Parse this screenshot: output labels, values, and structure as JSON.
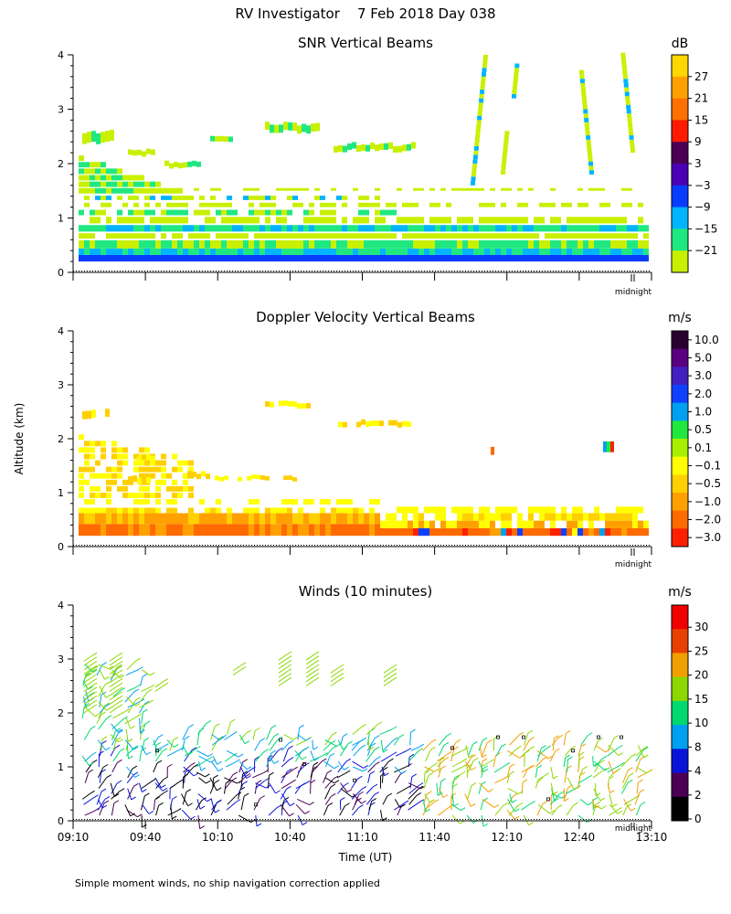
{
  "header": {
    "title": "RV Investigator    7 Feb 2018 Day 038"
  },
  "footer": {
    "note": "Simple moment winds, no ship navigation correction applied"
  },
  "y_axis_label": "Altitude (km)",
  "midnight_label": "midnight",
  "colors": {
    "wind_scale": [
      "#000000",
      "#4b0055",
      "#0a14d8",
      "#00a0f0",
      "#00d870",
      "#8cd800",
      "#f0a000",
      "#e84000",
      "#f00000"
    ]
  },
  "chart_data": [
    {
      "type": "heatmap",
      "title": "SNR Vertical Beams",
      "ylabel": "Altitude (km)",
      "ylim": [
        0,
        4
      ],
      "yticks": [
        "0",
        "1",
        "2",
        "3",
        "4"
      ],
      "colorbar": {
        "unit": "dB",
        "labels": [
          "27",
          "21",
          "15",
          "9",
          "3",
          "−3",
          "−9",
          "−15",
          "−21"
        ],
        "colors": [
          "#ffd700",
          "#ffa000",
          "#ff7000",
          "#ff1a00",
          "#4b0055",
          "#4a00b4",
          "#0a3cff",
          "#00b4ff",
          "#20e880",
          "#c8f000"
        ]
      }
    },
    {
      "type": "heatmap",
      "title": "Doppler Velocity Vertical Beams",
      "ylabel": "Altitude (km)",
      "ylim": [
        0,
        4
      ],
      "yticks": [
        "0",
        "1",
        "2",
        "3",
        "4"
      ],
      "colorbar": {
        "unit": "m/s",
        "labels": [
          "10.0",
          "5.0",
          "3.0",
          "2.0",
          "1.0",
          "0.5",
          "0.1",
          "−0.1",
          "−0.5",
          "−1.0",
          "−2.0",
          "−3.0"
        ],
        "colors": [
          "#2a0030",
          "#5a0080",
          "#4020c0",
          "#1040ff",
          "#00a0f0",
          "#20e840",
          "#a8f000",
          "#ffff00",
          "#ffd000",
          "#ffa000",
          "#ff6a00",
          "#ff2000"
        ]
      }
    },
    {
      "type": "scatter",
      "title": "Winds (10 minutes)",
      "ylabel": "Altitude (km)",
      "xlabel": "Time (UT)",
      "ylim": [
        0,
        4
      ],
      "yticks": [
        "0",
        "1",
        "2",
        "3",
        "4"
      ],
      "xticks": [
        "09:10",
        "09:40",
        "10:10",
        "10:40",
        "11:10",
        "11:40",
        "12:10",
        "12:40",
        "13:10"
      ],
      "colorbar": {
        "unit": "m/s",
        "labels": [
          "30",
          "25",
          "20",
          "15",
          "10",
          "8",
          "4",
          "2",
          "0"
        ],
        "colors": [
          "#f00000",
          "#e84000",
          "#f0a000",
          "#8cd800",
          "#00d870",
          "#00a0f0",
          "#0a14d8",
          "#4b0055",
          "#000000"
        ]
      }
    }
  ]
}
